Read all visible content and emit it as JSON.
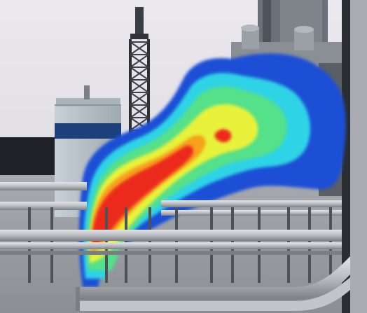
{
  "scene": {
    "subject": "industrial-site-gas-plume-thermal-overlay",
    "colors": {
      "sky_top": "#e8e6ec",
      "sky_bottom": "#d9d7dc",
      "ground": "#9a9ea3",
      "pipe": "#c9ccd0",
      "pipe_dark": "#6f7378",
      "building": "#b9c3cb",
      "building_band": "#1d3f7a",
      "tower": "#3a3d42",
      "plume_blue": "#1f4fd6",
      "plume_cyan": "#2fd3e6",
      "plume_green": "#55e08a",
      "plume_yellow": "#e8f23a",
      "plume_orange": "#f7a21b",
      "plume_red": "#ec2a1e"
    }
  }
}
